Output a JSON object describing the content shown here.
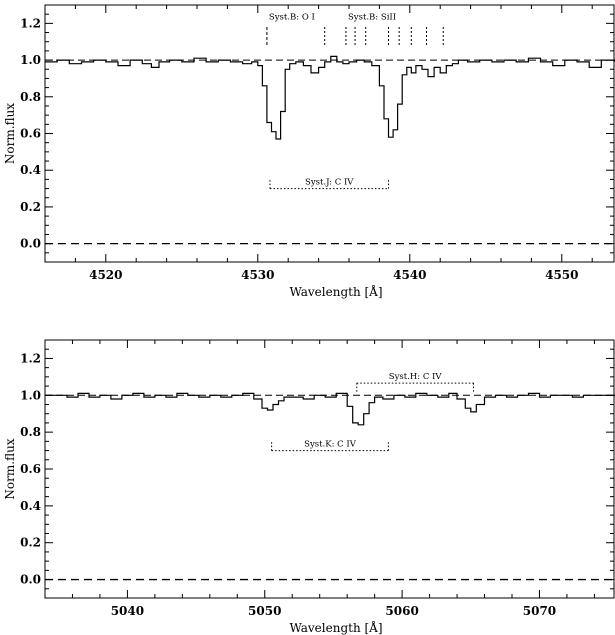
{
  "chart_data": [
    {
      "type": "line",
      "xlabel": "Wavelength [Å]",
      "ylabel": "Norm.flux",
      "xlim": [
        4516,
        4553.5
      ],
      "ylim": [
        -0.1,
        1.3
      ],
      "xticks": [
        4520,
        4530,
        4540,
        4550
      ],
      "xtick_labels": [
        "4520",
        "4530",
        "4540",
        "4550"
      ],
      "yticks": [
        0.0,
        0.2,
        0.4,
        0.6,
        0.8,
        1.0,
        1.2
      ],
      "ytick_labels": [
        "0.0",
        "0.2",
        "0.4",
        "0.6",
        "0.8",
        "1.0",
        "1.2"
      ],
      "reference_lines": [
        1.0,
        0.0
      ],
      "series": [
        {
          "x": [
            4516.0,
            4516.8,
            4517.6,
            4518.4,
            4519.2,
            4520.0,
            4520.8,
            4521.6,
            4522.4,
            4523.0,
            4523.5,
            4524.2,
            4525.0,
            4525.8,
            4526.6,
            4527.4,
            4528.2,
            4529.0,
            4529.6,
            4530.0,
            4530.3,
            4530.6,
            4530.9,
            4531.2,
            4531.5,
            4531.8,
            4532.1,
            4532.5,
            4533.0,
            4533.5,
            4534.0,
            4534.4,
            4534.8,
            4535.2,
            4535.6,
            4536.0,
            4536.5,
            4537.0,
            4537.5,
            4538.0,
            4538.3,
            4538.6,
            4538.9,
            4539.2,
            4539.5,
            4539.8,
            4540.1,
            4540.4,
            4540.8,
            4541.2,
            4541.6,
            4542.0,
            4542.4,
            4542.8,
            4543.2,
            4543.8,
            4544.6,
            4545.4,
            4546.2,
            4547.0,
            4547.8,
            4548.6,
            4549.4,
            4550.2,
            4551.0,
            4551.8,
            4552.6,
            4553.5
          ],
          "y": [
            0.99,
            1.0,
            0.98,
            0.99,
            1.0,
            0.99,
            0.97,
            1.0,
            0.98,
            0.96,
            0.99,
            1.0,
            0.99,
            1.01,
            0.99,
            1.0,
            0.99,
            0.98,
            0.99,
            0.97,
            0.86,
            0.66,
            0.61,
            0.57,
            0.72,
            0.95,
            0.98,
            0.99,
            0.97,
            0.93,
            0.96,
            0.99,
            1.02,
            0.99,
            0.98,
            0.99,
            1.0,
            0.99,
            0.97,
            0.86,
            0.68,
            0.58,
            0.62,
            0.76,
            0.92,
            0.96,
            0.93,
            0.97,
            0.95,
            0.91,
            0.96,
            0.93,
            0.97,
            0.98,
            1.0,
            0.99,
            1.0,
            0.99,
            1.0,
            0.99,
            1.01,
            0.99,
            0.97,
            1.0,
            0.99,
            0.96,
            1.0,
            0.99
          ]
        }
      ],
      "annotations": [
        {
          "label": "Syst.B: O I",
          "x_start": 4530.6,
          "x_end": 4534.4,
          "y": 1.17
        },
        {
          "label": "Syst.B: SiII",
          "x_start": 4535.8,
          "x_end": 4542.2,
          "y": 1.17
        },
        {
          "label": "Syst.J: C IV",
          "x_start": 4530.8,
          "x_end": 4538.6,
          "y": 0.3
        }
      ],
      "marker_ticks": [
        4530.6,
        4534.4,
        4535.8,
        4536.4,
        4537.1,
        4538.6,
        4539.3,
        4540.1,
        4541.1,
        4542.2
      ]
    },
    {
      "type": "line",
      "xlabel": "Wavelength [Å]",
      "ylabel": "Norm.flux",
      "xlim": [
        5034,
        5075.5
      ],
      "ylim": [
        -0.1,
        1.3
      ],
      "xticks": [
        5040,
        5050,
        5060,
        5070
      ],
      "xtick_labels": [
        "5040",
        "5050",
        "5060",
        "5070"
      ],
      "yticks": [
        0.0,
        0.2,
        0.4,
        0.6,
        0.8,
        1.0,
        1.2
      ],
      "ytick_labels": [
        "0.0",
        "0.2",
        "0.4",
        "0.6",
        "0.8",
        "1.0",
        "1.2"
      ],
      "reference_lines": [
        1.0,
        0.0
      ],
      "series": [
        {
          "x": [
            5034.0,
            5034.8,
            5035.6,
            5036.4,
            5037.2,
            5038.0,
            5038.8,
            5039.6,
            5040.4,
            5041.2,
            5042.0,
            5042.8,
            5043.6,
            5044.4,
            5045.2,
            5046.0,
            5046.8,
            5047.6,
            5048.4,
            5049.2,
            5049.8,
            5050.2,
            5050.6,
            5051.0,
            5051.4,
            5052.0,
            5052.8,
            5053.6,
            5054.4,
            5055.2,
            5056.0,
            5056.4,
            5056.8,
            5057.2,
            5057.6,
            5058.0,
            5058.6,
            5059.4,
            5060.2,
            5061.0,
            5061.8,
            5062.6,
            5063.4,
            5064.0,
            5064.6,
            5065.0,
            5065.4,
            5066.0,
            5066.8,
            5067.6,
            5068.4,
            5069.2,
            5070.0,
            5070.8,
            5071.6,
            5072.4,
            5073.2,
            5074.0,
            5075.5
          ],
          "y": [
            1.0,
            1.0,
            0.99,
            1.01,
            0.99,
            1.0,
            0.98,
            1.0,
            1.01,
            0.99,
            1.0,
            0.99,
            1.01,
            1.0,
            0.99,
            1.0,
            0.99,
            1.0,
            1.01,
            0.98,
            0.93,
            0.92,
            0.95,
            0.97,
            0.99,
            0.99,
            0.98,
            1.0,
            0.99,
            1.01,
            0.94,
            0.85,
            0.84,
            0.9,
            0.96,
            0.99,
            0.98,
            1.0,
            0.99,
            1.01,
            1.0,
            0.99,
            1.01,
            0.98,
            0.93,
            0.91,
            0.95,
            0.99,
            1.0,
            0.99,
            1.0,
            1.01,
            0.99,
            1.0,
            1.0,
            0.99,
            1.0,
            1.0,
            1.0
          ]
        }
      ],
      "annotations": [
        {
          "label": "Syst.H: C IV",
          "x_start": 5056.7,
          "x_end": 5065.2,
          "y": 1.12
        },
        {
          "label": "Syst.K: C IV",
          "x_start": 5050.5,
          "x_end": 5059.0,
          "y": 0.7
        }
      ],
      "marker_ticks": []
    }
  ]
}
